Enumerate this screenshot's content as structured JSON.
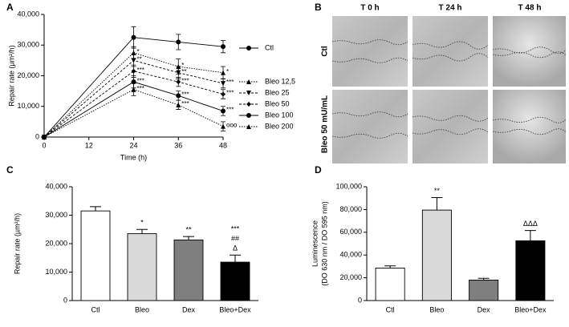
{
  "chart_data": [
    {
      "panel": "A",
      "type": "line",
      "xlabel": "Time (h)",
      "ylabel": "Repair rate (µm²/h)",
      "x": [
        0,
        24,
        36,
        48
      ],
      "xlim": [
        0,
        48
      ],
      "xticks": [
        0,
        12,
        24,
        36,
        48
      ],
      "ylim": [
        0,
        40000
      ],
      "yticks": [
        0,
        {
          "value": 10000,
          "label": "10,000"
        },
        {
          "value": 20000,
          "label": "20,000"
        },
        {
          "value": 30000,
          "label": "30,000"
        },
        {
          "value": 40000,
          "label": "40,000"
        }
      ],
      "series": [
        {
          "name": "Ctl",
          "color": "#000000",
          "marker": "circle",
          "line_style": "solid",
          "values": [
            0,
            32500,
            31000,
            29500
          ],
          "errors": [
            0,
            3500,
            2500,
            2000
          ]
        },
        {
          "name": "Bleo 12,5",
          "color": "#000000",
          "marker": "triangle-up",
          "line_style": "dotted",
          "values": [
            0,
            27500,
            23000,
            21000
          ],
          "errors": [
            0,
            2000,
            2500,
            2000
          ],
          "annotations": [
            null,
            "*",
            "*",
            "*"
          ]
        },
        {
          "name": "Bleo 25",
          "color": "#000000",
          "marker": "triangle-down",
          "line_style": "dashed",
          "values": [
            0,
            25000,
            21000,
            17500
          ],
          "errors": [
            0,
            2000,
            2000,
            1500
          ],
          "annotations": [
            null,
            "**",
            "**",
            "***"
          ]
        },
        {
          "name": "Bleo 50",
          "color": "#000000",
          "marker": "diamond",
          "line_style": "dashed",
          "values": [
            0,
            21500,
            18000,
            14000
          ],
          "errors": [
            0,
            2000,
            1500,
            1500
          ],
          "annotations": [
            null,
            "***",
            "***",
            "***"
          ]
        },
        {
          "name": "Bleo 100",
          "color": "#000000",
          "marker": "circle",
          "line_style": "solid",
          "values": [
            0,
            18000,
            13500,
            8500
          ],
          "errors": [
            0,
            2000,
            1500,
            1500
          ],
          "annotations": [
            null,
            "***",
            "***",
            "***"
          ]
        },
        {
          "name": "Bleo 200",
          "color": "#000000",
          "marker": "triangle-up",
          "line_style": "dotted",
          "values": [
            0,
            15500,
            10500,
            3500
          ],
          "errors": [
            0,
            2000,
            1500,
            1500
          ],
          "annotations": [
            null,
            "***",
            "***",
            "ooo"
          ]
        }
      ]
    },
    {
      "panel": "C",
      "type": "bar",
      "ylabel": "Repair rate (µm²/h)",
      "categories": [
        "Ctl",
        "Bleo",
        "Dex",
        "Bleo+Dex"
      ],
      "values": [
        31500,
        23500,
        21300,
        13500
      ],
      "errors": [
        1500,
        1500,
        1200,
        2500
      ],
      "colors": [
        "#ffffff",
        "#d9d9d9",
        "#7f7f7f",
        "#000000"
      ],
      "annotations": [
        null,
        [
          "*"
        ],
        [
          "**"
        ],
        [
          "***",
          "##",
          "Δ"
        ]
      ],
      "ylim": [
        0,
        40000
      ],
      "yticks": [
        0,
        {
          "value": 10000,
          "label": "10,000"
        },
        {
          "value": 20000,
          "label": "20,000"
        },
        {
          "value": 30000,
          "label": "30,000"
        },
        {
          "value": 40000,
          "label": "40,000"
        }
      ]
    },
    {
      "panel": "D",
      "type": "bar",
      "ylabel": [
        "Luminescence",
        "(DO 630 nm / DO 595 nm)"
      ],
      "categories": [
        "Ctl",
        "Bleo",
        "Dex",
        "Bleo+Dex"
      ],
      "values": [
        28500,
        79500,
        18000,
        52500
      ],
      "errors": [
        2000,
        11000,
        1500,
        9000
      ],
      "colors": [
        "#ffffff",
        "#d9d9d9",
        "#7f7f7f",
        "#000000"
      ],
      "annotations": [
        null,
        [
          "**"
        ],
        null,
        [
          "ΔΔΔ"
        ]
      ],
      "ylim": [
        0,
        100000
      ],
      "yticks": [
        0,
        {
          "value": 20000,
          "label": "20,000"
        },
        {
          "value": 40000,
          "label": "40,000"
        },
        {
          "value": 60000,
          "label": "60,000"
        },
        {
          "value": 80000,
          "label": "80,000"
        },
        {
          "value": 100000,
          "label": "100,000"
        }
      ]
    }
  ],
  "image_panel": {
    "panel": "B",
    "columns": [
      "T 0 h",
      "T 24 h",
      "T 48 h"
    ],
    "rows": [
      "Ctl",
      "Bleo 50 mU/mL"
    ]
  }
}
